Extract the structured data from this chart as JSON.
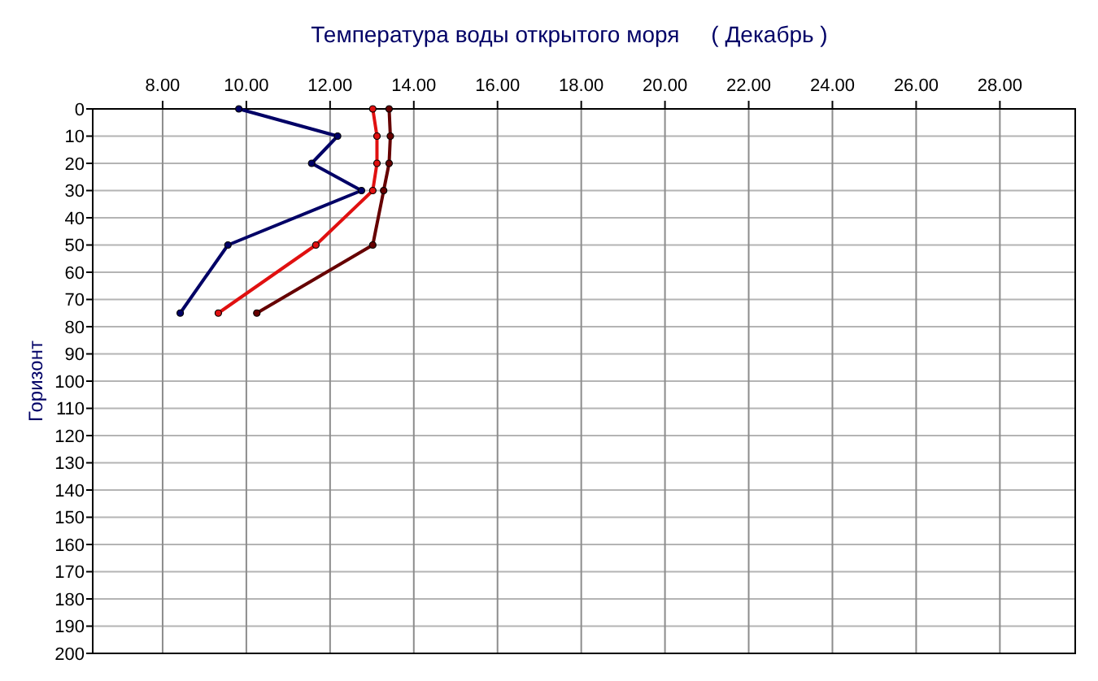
{
  "chart_data": {
    "type": "line",
    "title": "Температура воды открытого моря     ( Декабрь )",
    "ylabel": "Горизонт",
    "xlim": [
      6.33,
      29.8
    ],
    "xticks": [
      {
        "value": 8,
        "label": "8.00"
      },
      {
        "value": 10,
        "label": "10.00"
      },
      {
        "value": 12,
        "label": "12.00"
      },
      {
        "value": 14,
        "label": "14.00"
      },
      {
        "value": 16,
        "label": "16.00"
      },
      {
        "value": 18,
        "label": "18.00"
      },
      {
        "value": 20,
        "label": "20.00"
      },
      {
        "value": 22,
        "label": "22.00"
      },
      {
        "value": 24,
        "label": "24.00"
      },
      {
        "value": 26,
        "label": "26.00"
      },
      {
        "value": 28,
        "label": "28.00"
      }
    ],
    "ylim": [
      200,
      0
    ],
    "yticks": [
      0,
      10,
      20,
      30,
      40,
      50,
      60,
      70,
      80,
      90,
      100,
      110,
      120,
      130,
      140,
      150,
      160,
      170,
      180,
      190,
      200
    ],
    "grid": true,
    "marker": "circle",
    "series": [
      {
        "color": "#000066",
        "x": [
          9.82,
          12.18,
          11.56,
          12.75,
          9.56,
          8.42
        ],
        "values": [
          0,
          10,
          20,
          30,
          50,
          75
        ]
      },
      {
        "color": "#e01010",
        "x": [
          13.02,
          13.12,
          13.12,
          13.02,
          11.66,
          9.33
        ],
        "values": [
          0,
          10,
          20,
          30,
          50,
          75
        ]
      },
      {
        "color": "#660000",
        "x": [
          13.41,
          13.44,
          13.41,
          13.28,
          13.02,
          10.25
        ],
        "values": [
          0,
          10,
          20,
          30,
          50,
          75
        ]
      }
    ]
  }
}
